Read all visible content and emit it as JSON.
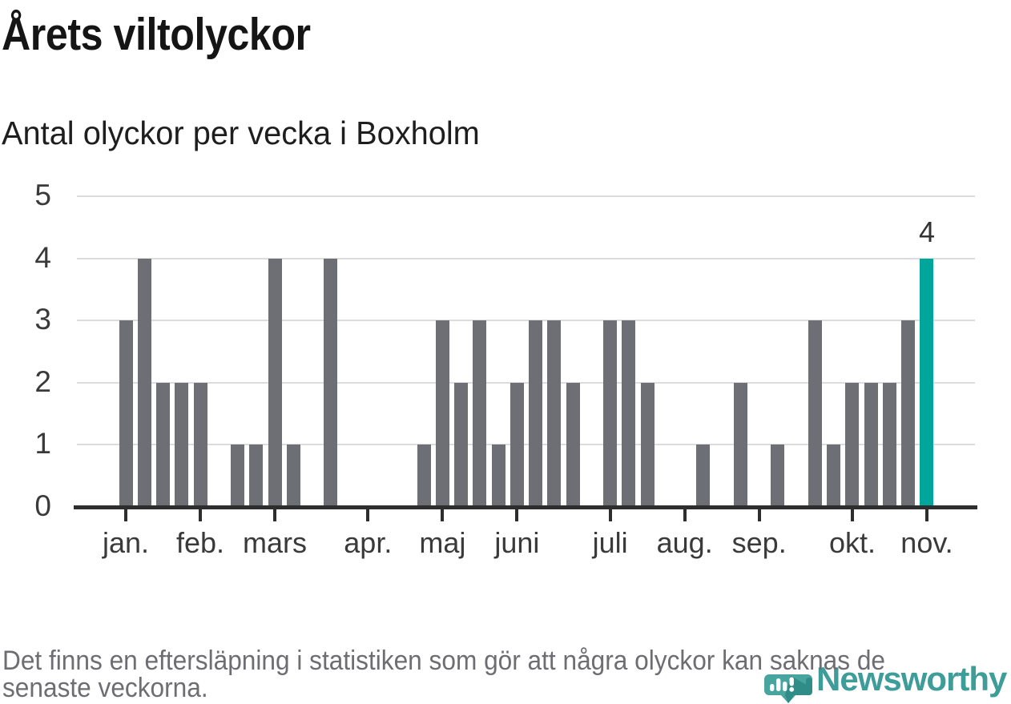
{
  "colors": {
    "background": "#FFFFFF",
    "title": "#151515",
    "subtitle": "#1E1E1E",
    "bar": "#6E6F75",
    "highlight": "#00A69B",
    "grid": "#DCDCDC",
    "axis": "#2E2E2E",
    "axis-label": "#3A3A3A",
    "datalabel": "#333333",
    "footnote": "#6D6D72",
    "brand-teal": "#3E9D99",
    "brand-pin": "#47A49F",
    "brand-pin-shadow": "#2F8C86"
  },
  "chart_data": {
    "type": "bar",
    "title": "Årets viltolyckor",
    "subtitle": "Antal olyckor per vecka i Boxholm",
    "xlabel": "",
    "ylabel": "",
    "ylim": [
      0,
      5
    ],
    "yticks": [
      0,
      1,
      2,
      3,
      4,
      5
    ],
    "grid": true,
    "legend": false,
    "weeks": 44,
    "values": [
      3,
      4,
      2,
      2,
      2,
      0,
      1,
      1,
      4,
      1,
      0,
      4,
      0,
      0,
      0,
      0,
      1,
      3,
      2,
      3,
      1,
      2,
      3,
      3,
      2,
      0,
      3,
      3,
      2,
      0,
      0,
      1,
      0,
      2,
      0,
      1,
      0,
      3,
      1,
      2,
      2,
      2,
      3,
      4
    ],
    "month_ticks": [
      {
        "week": 1,
        "label": "jan."
      },
      {
        "week": 5,
        "label": "feb."
      },
      {
        "week": 9,
        "label": "mars"
      },
      {
        "week": 14,
        "label": "apr."
      },
      {
        "week": 18,
        "label": "maj"
      },
      {
        "week": 22,
        "label": "juni"
      },
      {
        "week": 27,
        "label": "juli"
      },
      {
        "week": 31,
        "label": "aug."
      },
      {
        "week": 35,
        "label": "sep."
      },
      {
        "week": 40,
        "label": "okt."
      },
      {
        "week": 44,
        "label": "nov."
      }
    ],
    "highlight": {
      "week": 44,
      "value": 4,
      "label": "4"
    }
  },
  "footnote": {
    "lines": [
      "Det finns en eftersläpning i statistiken som gör att några olyckor kan saknas de",
      "senaste veckorna."
    ]
  },
  "logo": {
    "wordmark": "Newsworthy",
    "icon": "newsworthy-pin-bar-chart-icon"
  }
}
